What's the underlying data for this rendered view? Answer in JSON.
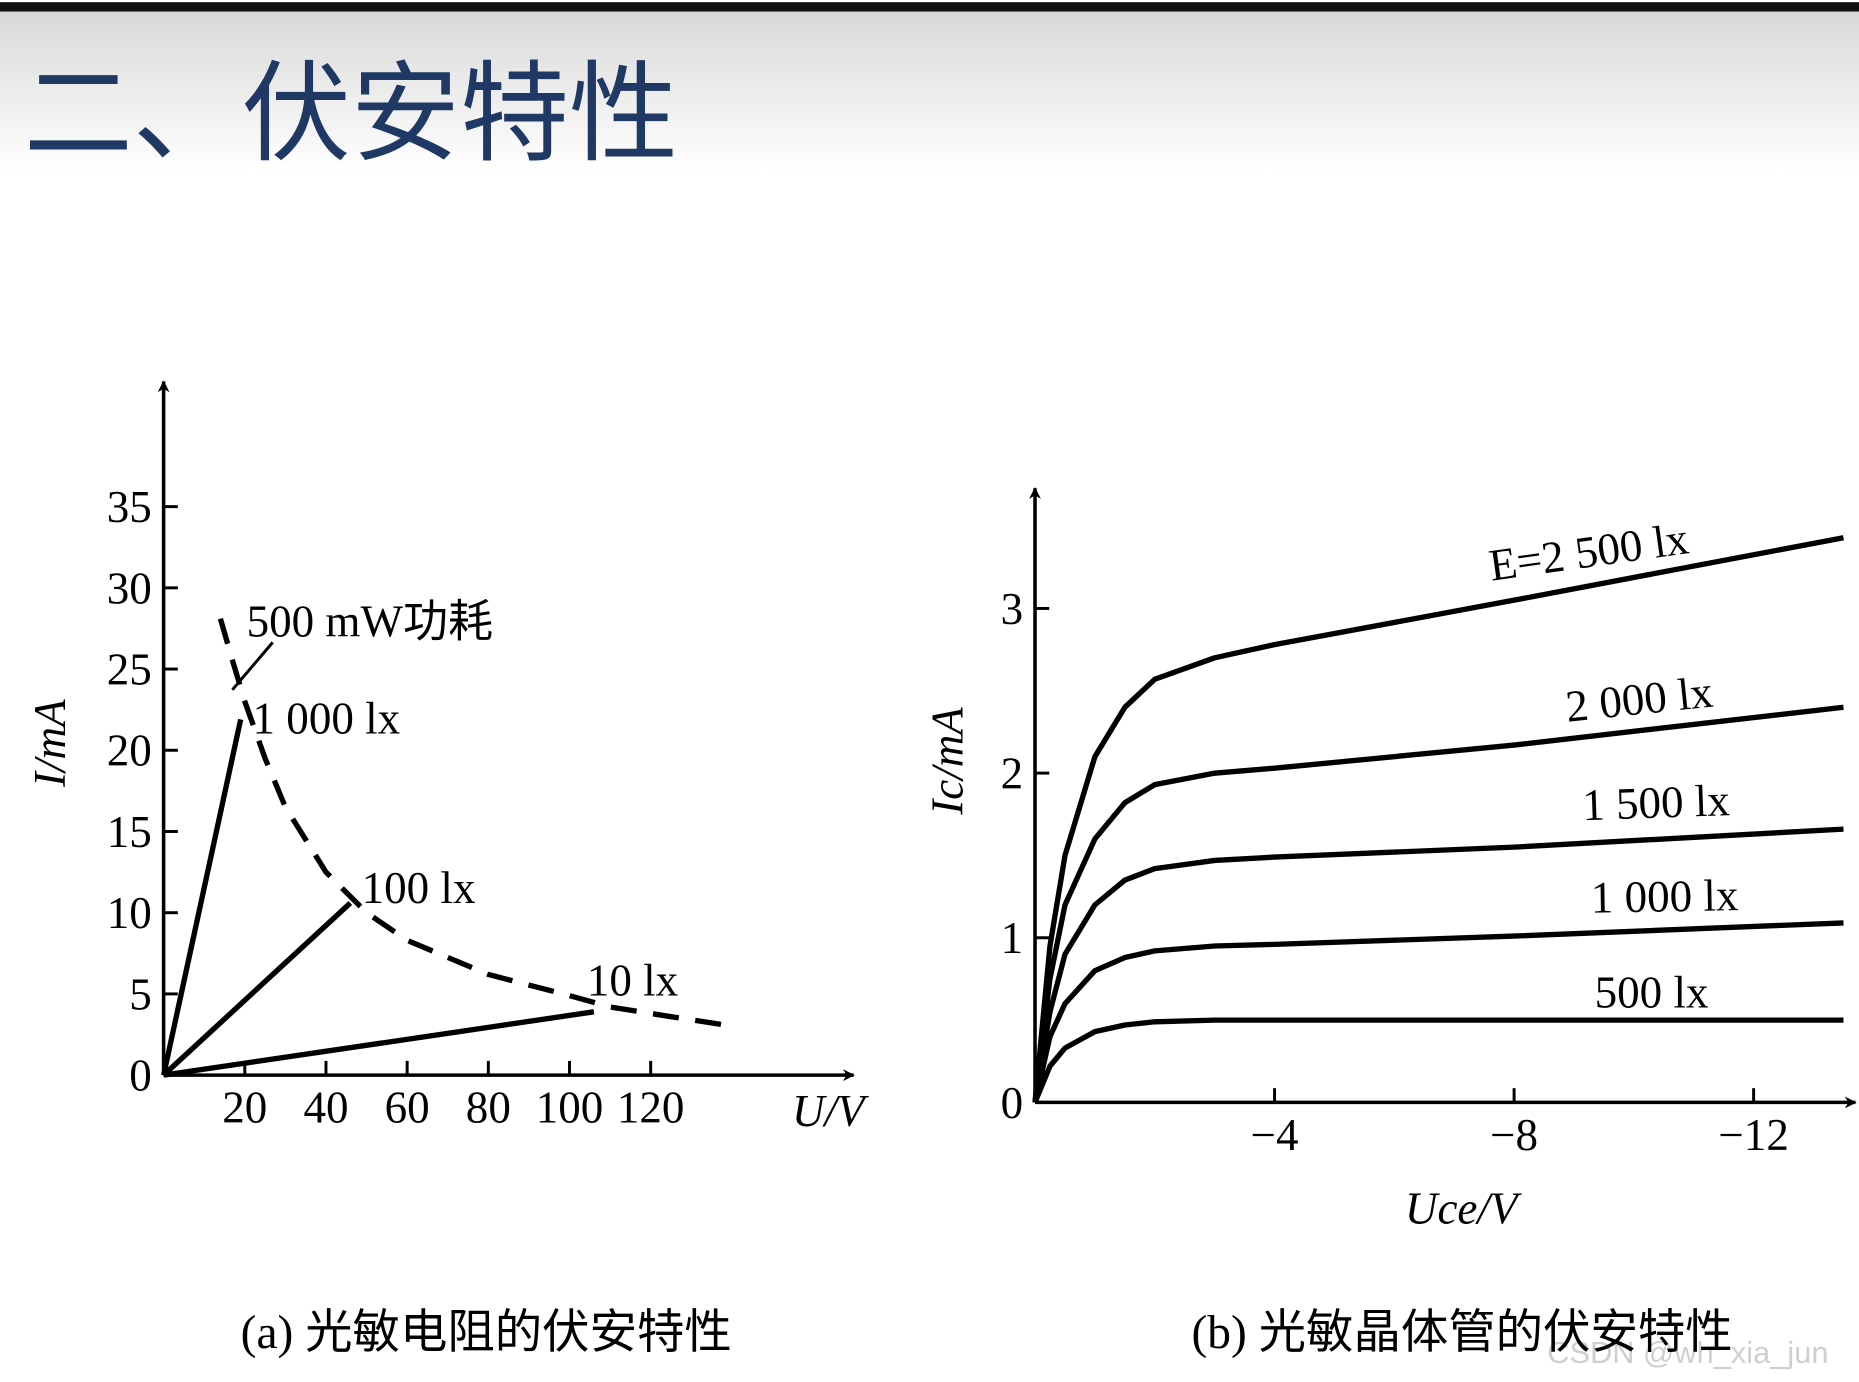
{
  "header": {
    "title": "二、伏安特性"
  },
  "watermark": "CSDN @wh_xia_jun",
  "chart_data": [
    {
      "type": "line",
      "caption": "(a) 光敏电阻的伏安特性",
      "x_label": "U/V",
      "y_label": "I/mA",
      "xlim": [
        0,
        170
      ],
      "ylim": [
        0,
        42.7
      ],
      "xticks": [
        20,
        40,
        60,
        80,
        100,
        120
      ],
      "yticks": [
        0,
        5,
        10,
        15,
        20,
        25,
        30,
        35
      ],
      "series": [
        {
          "name": "500 mW功耗",
          "color": "#000000",
          "dashed": true,
          "x": [
            14,
            17,
            20,
            25,
            30,
            40,
            50,
            60,
            80,
            100,
            110,
            125,
            138
          ],
          "values": [
            28.1,
            25.5,
            23,
            19.5,
            16.5,
            12.5,
            10,
            8.3,
            6.2,
            4.9,
            4.2,
            3.6,
            3.1
          ]
        },
        {
          "name": "1 000 lx",
          "color": "#000000",
          "dashed": false,
          "x": [
            0,
            19
          ],
          "values": [
            0,
            21.9
          ]
        },
        {
          "name": "100 lx",
          "color": "#000000",
          "dashed": false,
          "x": [
            0,
            46
          ],
          "values": [
            0,
            10.6
          ]
        },
        {
          "name": "10 lx",
          "color": "#000000",
          "dashed": false,
          "x": [
            0,
            106
          ],
          "values": [
            0,
            3.9
          ]
        }
      ]
    },
    {
      "type": "line",
      "caption": "(b) 光敏晶体管的伏安特性",
      "x_label": "Uce/V",
      "y_label": "Ic/mA",
      "xlim": [
        0,
        -13.7
      ],
      "ylim": [
        0,
        3.73
      ],
      "xticks": [
        {
          "value": -4,
          "label": "−4"
        },
        {
          "value": -8,
          "label": "−8"
        },
        {
          "value": -12,
          "label": "−12"
        }
      ],
      "yticks": [
        0,
        1,
        2,
        3
      ],
      "x": [
        0,
        -0.25,
        -0.5,
        -1,
        -1.5,
        -2,
        -3,
        -4,
        -8,
        -13.5
      ],
      "series": [
        {
          "name": "E=2 500 lx",
          "color": "#000000",
          "values": [
            0,
            0.95,
            1.5,
            2.1,
            2.4,
            2.57,
            2.7,
            2.78,
            3.05,
            3.43
          ]
        },
        {
          "name": "2 000 lx",
          "color": "#000000",
          "values": [
            0,
            0.75,
            1.2,
            1.6,
            1.82,
            1.93,
            2.0,
            2.03,
            2.17,
            2.4
          ]
        },
        {
          "name": "1 500 lx",
          "color": "#000000",
          "values": [
            0,
            0.55,
            0.9,
            1.2,
            1.35,
            1.42,
            1.47,
            1.49,
            1.55,
            1.66
          ]
        },
        {
          "name": "1 000 lx",
          "color": "#000000",
          "values": [
            0,
            0.4,
            0.6,
            0.8,
            0.88,
            0.92,
            0.95,
            0.96,
            1.01,
            1.09
          ]
        },
        {
          "name": "500 lx",
          "color": "#000000",
          "values": [
            0,
            0.22,
            0.33,
            0.43,
            0.47,
            0.49,
            0.5,
            0.5,
            0.5,
            0.5
          ]
        }
      ]
    }
  ]
}
